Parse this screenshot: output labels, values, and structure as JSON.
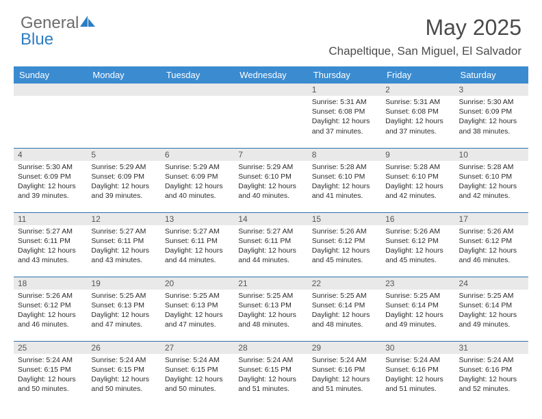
{
  "brand": {
    "text_gray": "General",
    "text_blue": "Blue",
    "accent_color": "#2d7dc2",
    "gray_color": "#6b6b6b"
  },
  "header": {
    "month_title": "May 2025",
    "location": "Chapeltique, San Miguel, El Salvador"
  },
  "styling": {
    "header_bg": "#3b8bd0",
    "header_text": "#ffffff",
    "cell_border": "#2d6fa8",
    "daynum_bg": "#e9e9e9",
    "body_text": "#2a2a2a",
    "page_bg": "#ffffff",
    "font_family": "Arial, Helvetica, sans-serif",
    "month_title_fontsize": 32,
    "location_fontsize": 17,
    "dayhead_fontsize": 13,
    "detail_fontsize": 10.5
  },
  "day_headers": [
    "Sunday",
    "Monday",
    "Tuesday",
    "Wednesday",
    "Thursday",
    "Friday",
    "Saturday"
  ],
  "weeks": [
    [
      null,
      null,
      null,
      null,
      {
        "n": "1",
        "sunrise": "5:31 AM",
        "sunset": "6:08 PM",
        "daylight": "12 hours and 37 minutes."
      },
      {
        "n": "2",
        "sunrise": "5:31 AM",
        "sunset": "6:08 PM",
        "daylight": "12 hours and 37 minutes."
      },
      {
        "n": "3",
        "sunrise": "5:30 AM",
        "sunset": "6:09 PM",
        "daylight": "12 hours and 38 minutes."
      }
    ],
    [
      {
        "n": "4",
        "sunrise": "5:30 AM",
        "sunset": "6:09 PM",
        "daylight": "12 hours and 39 minutes."
      },
      {
        "n": "5",
        "sunrise": "5:29 AM",
        "sunset": "6:09 PM",
        "daylight": "12 hours and 39 minutes."
      },
      {
        "n": "6",
        "sunrise": "5:29 AM",
        "sunset": "6:09 PM",
        "daylight": "12 hours and 40 minutes."
      },
      {
        "n": "7",
        "sunrise": "5:29 AM",
        "sunset": "6:10 PM",
        "daylight": "12 hours and 40 minutes."
      },
      {
        "n": "8",
        "sunrise": "5:28 AM",
        "sunset": "6:10 PM",
        "daylight": "12 hours and 41 minutes."
      },
      {
        "n": "9",
        "sunrise": "5:28 AM",
        "sunset": "6:10 PM",
        "daylight": "12 hours and 42 minutes."
      },
      {
        "n": "10",
        "sunrise": "5:28 AM",
        "sunset": "6:10 PM",
        "daylight": "12 hours and 42 minutes."
      }
    ],
    [
      {
        "n": "11",
        "sunrise": "5:27 AM",
        "sunset": "6:11 PM",
        "daylight": "12 hours and 43 minutes."
      },
      {
        "n": "12",
        "sunrise": "5:27 AM",
        "sunset": "6:11 PM",
        "daylight": "12 hours and 43 minutes."
      },
      {
        "n": "13",
        "sunrise": "5:27 AM",
        "sunset": "6:11 PM",
        "daylight": "12 hours and 44 minutes."
      },
      {
        "n": "14",
        "sunrise": "5:27 AM",
        "sunset": "6:11 PM",
        "daylight": "12 hours and 44 minutes."
      },
      {
        "n": "15",
        "sunrise": "5:26 AM",
        "sunset": "6:12 PM",
        "daylight": "12 hours and 45 minutes."
      },
      {
        "n": "16",
        "sunrise": "5:26 AM",
        "sunset": "6:12 PM",
        "daylight": "12 hours and 45 minutes."
      },
      {
        "n": "17",
        "sunrise": "5:26 AM",
        "sunset": "6:12 PM",
        "daylight": "12 hours and 46 minutes."
      }
    ],
    [
      {
        "n": "18",
        "sunrise": "5:26 AM",
        "sunset": "6:12 PM",
        "daylight": "12 hours and 46 minutes."
      },
      {
        "n": "19",
        "sunrise": "5:25 AM",
        "sunset": "6:13 PM",
        "daylight": "12 hours and 47 minutes."
      },
      {
        "n": "20",
        "sunrise": "5:25 AM",
        "sunset": "6:13 PM",
        "daylight": "12 hours and 47 minutes."
      },
      {
        "n": "21",
        "sunrise": "5:25 AM",
        "sunset": "6:13 PM",
        "daylight": "12 hours and 48 minutes."
      },
      {
        "n": "22",
        "sunrise": "5:25 AM",
        "sunset": "6:14 PM",
        "daylight": "12 hours and 48 minutes."
      },
      {
        "n": "23",
        "sunrise": "5:25 AM",
        "sunset": "6:14 PM",
        "daylight": "12 hours and 49 minutes."
      },
      {
        "n": "24",
        "sunrise": "5:25 AM",
        "sunset": "6:14 PM",
        "daylight": "12 hours and 49 minutes."
      }
    ],
    [
      {
        "n": "25",
        "sunrise": "5:24 AM",
        "sunset": "6:15 PM",
        "daylight": "12 hours and 50 minutes."
      },
      {
        "n": "26",
        "sunrise": "5:24 AM",
        "sunset": "6:15 PM",
        "daylight": "12 hours and 50 minutes."
      },
      {
        "n": "27",
        "sunrise": "5:24 AM",
        "sunset": "6:15 PM",
        "daylight": "12 hours and 50 minutes."
      },
      {
        "n": "28",
        "sunrise": "5:24 AM",
        "sunset": "6:15 PM",
        "daylight": "12 hours and 51 minutes."
      },
      {
        "n": "29",
        "sunrise": "5:24 AM",
        "sunset": "6:16 PM",
        "daylight": "12 hours and 51 minutes."
      },
      {
        "n": "30",
        "sunrise": "5:24 AM",
        "sunset": "6:16 PM",
        "daylight": "12 hours and 51 minutes."
      },
      {
        "n": "31",
        "sunrise": "5:24 AM",
        "sunset": "6:16 PM",
        "daylight": "12 hours and 52 minutes."
      }
    ]
  ],
  "labels": {
    "sunrise": "Sunrise: ",
    "sunset": "Sunset: ",
    "daylight": "Daylight: "
  }
}
